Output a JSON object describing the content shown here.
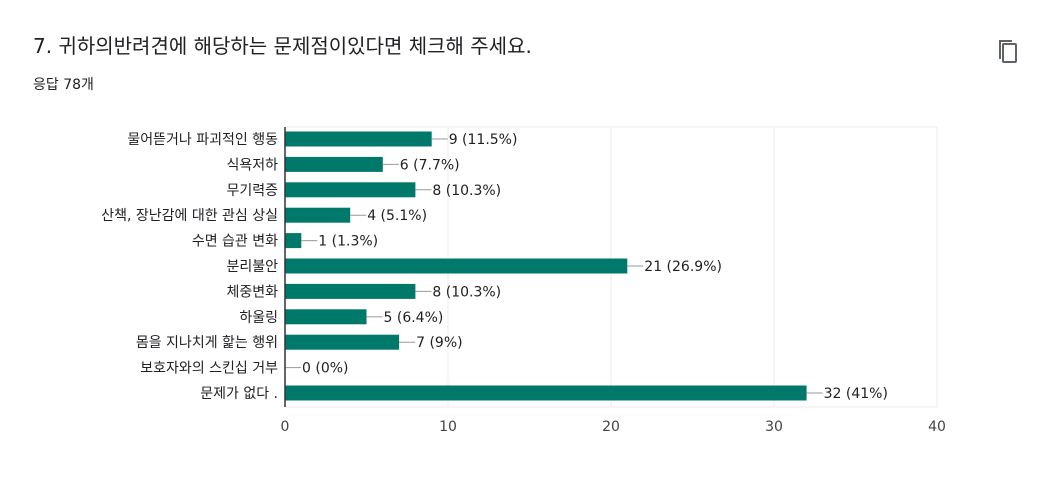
{
  "question": {
    "title": "7. 귀하의반려견에 해당하는 문제점이있다면 체크해 주세요.",
    "response_count": "응답 78개"
  },
  "toolbar": {
    "copy_icon": "copy-icon"
  },
  "colors": {
    "bar": "#00796b",
    "text": "#202124",
    "axis": "#333333",
    "grid": "#ebebeb"
  },
  "chart_data": {
    "type": "bar",
    "orientation": "horizontal",
    "categories": [
      "물어뜯거나 파괴적인 행동",
      "식욕저하",
      "무기력증",
      "산책, 장난감에 대한 관심 상실",
      "수면 습관 변화",
      "분리불안",
      "체중변화",
      "하울링",
      "몸을 지나치게 핥는 행위",
      "보호자와의 스킨십 거부",
      "문제가 없다 ."
    ],
    "values": [
      9,
      6,
      8,
      4,
      1,
      21,
      8,
      5,
      7,
      0,
      32
    ],
    "value_labels": [
      "9 (11.5%)",
      "6 (7.7%)",
      "8 (10.3%)",
      "4 (5.1%)",
      "1 (1.3%)",
      "21 (26.9%)",
      "8 (10.3%)",
      "5 (6.4%)",
      "7 (9%)",
      "0 (0%)",
      "32 (41%)"
    ],
    "xlim": [
      0,
      40
    ],
    "xticks": [
      0,
      10,
      20,
      30,
      40
    ],
    "xtick_labels": [
      "0",
      "10",
      "20",
      "30",
      "40"
    ],
    "grid": true
  }
}
